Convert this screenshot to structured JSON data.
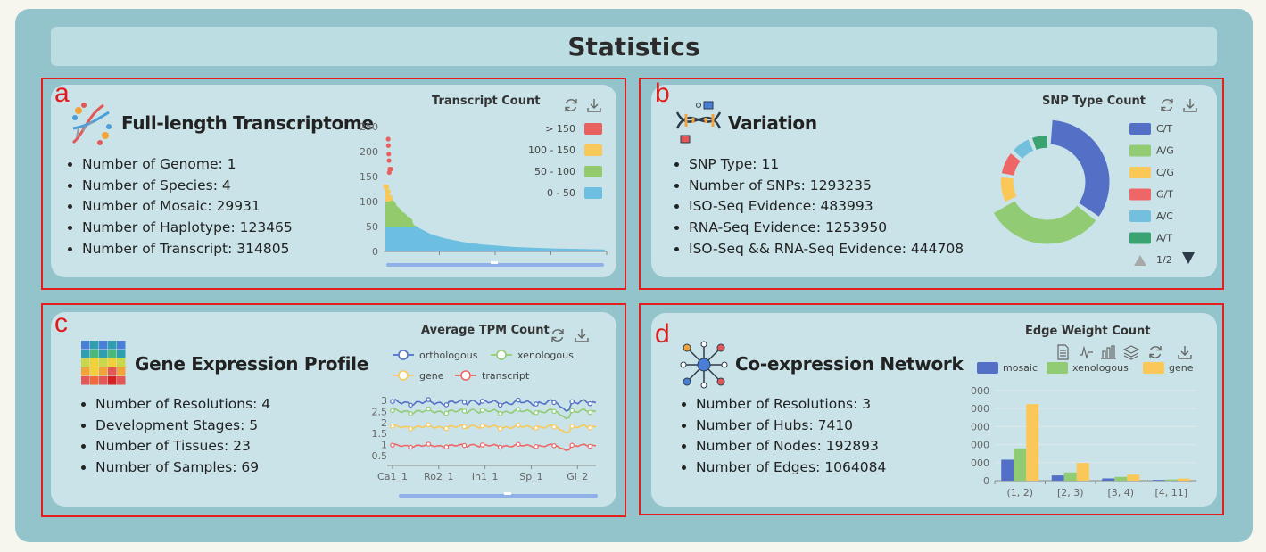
{
  "page": {
    "title": "Statistics"
  },
  "panels": {
    "a": {
      "letter": "a",
      "title": "Full-length Transcriptome",
      "stats": [
        "Number of Genome: 1",
        "Number of Species: 4",
        "Number of Mosaic: 29931",
        "Number of Haplotype: 123465",
        "Number of Transcript: 314805"
      ],
      "chart_title": "Transcript Count",
      "icons": [
        "refresh-icon",
        "download-icon"
      ]
    },
    "b": {
      "letter": "b",
      "title": "Variation",
      "stats": [
        "SNP Type: 11",
        "Number of SNPs: 1293235",
        "ISO-Seq Evidence: 483993",
        "RNA-Seq Evidence: 1253950",
        "ISO-Seq && RNA-Seq Evidence: 444708"
      ],
      "chart_title": "SNP Type Count",
      "pager": "1/2",
      "icons": [
        "refresh-icon",
        "download-icon"
      ]
    },
    "c": {
      "letter": "c",
      "title": "Gene Expression Profile",
      "stats": [
        "Number of Resolutions: 4",
        "Development Stages: 5",
        "Number of Tissues: 23",
        "Number of Samples: 69"
      ],
      "chart_title": "Average TPM Count",
      "icons": [
        "refresh-icon",
        "download-icon"
      ]
    },
    "d": {
      "letter": "d",
      "title": "Co-expression Network",
      "stats": [
        "Number of Resolutions: 3",
        "Number of Hubs: 7410",
        "Number of Nodes: 192893",
        "Number of Edges: 1064084"
      ],
      "chart_title": "Edge Weight Count",
      "icons": [
        "data-view-icon",
        "line-chart-icon",
        "bar-chart-icon",
        "stack-icon",
        "refresh-icon",
        "download-icon"
      ]
    }
  },
  "chart_data": [
    {
      "id": "transcript-count",
      "type": "scatter",
      "title": "Transcript Count",
      "y_ticks": [
        "0",
        "50",
        "100",
        "150",
        "200",
        "250"
      ],
      "ylim": [
        0,
        250
      ],
      "legend": [
        {
          "label": "> 150",
          "color": "#e8615f"
        },
        {
          "label": "100 - 150",
          "color": "#f9c85b"
        },
        {
          "label": "50 - 100",
          "color": "#93cb6c"
        },
        {
          "label": "0 - 50",
          "color": "#6cbfe0"
        }
      ],
      "outliers": [
        {
          "x": 0.2,
          "y": 225
        },
        {
          "x": 0.5,
          "y": 212
        },
        {
          "x": 1.0,
          "y": 195
        },
        {
          "x": 1.5,
          "y": 182
        },
        {
          "x": 2.5,
          "y": 165
        },
        {
          "x": 4.5,
          "y": 165
        },
        {
          "x": 1.8,
          "y": 158
        }
      ],
      "curve": [
        [
          0,
          130
        ],
        [
          2,
          128
        ],
        [
          4,
          120
        ],
        [
          6,
          112
        ],
        [
          8,
          104
        ],
        [
          10,
          97
        ],
        [
          15,
          88
        ],
        [
          20,
          80
        ],
        [
          30,
          68
        ],
        [
          40,
          57
        ],
        [
          55,
          45
        ],
        [
          70,
          35
        ],
        [
          90,
          27
        ],
        [
          120,
          19
        ],
        [
          150,
          14
        ],
        [
          200,
          9
        ],
        [
          260,
          6
        ],
        [
          340,
          4
        ]
      ],
      "x_count": 340
    },
    {
      "id": "snp-type-count",
      "type": "pie",
      "title": "SNP Type Count",
      "legend": [
        {
          "label": "C/T",
          "color": "#5470c6"
        },
        {
          "label": "A/G",
          "color": "#91cc75"
        },
        {
          "label": "C/G",
          "color": "#fac858"
        },
        {
          "label": "G/T",
          "color": "#ee6666"
        },
        {
          "label": "A/C",
          "color": "#73c0de"
        },
        {
          "label": "A/T",
          "color": "#3ba272"
        }
      ],
      "values": [
        310,
        290,
        90,
        80,
        70,
        60
      ]
    },
    {
      "id": "average-tpm-count",
      "type": "line",
      "title": "Average TPM Count",
      "series": [
        {
          "name": "orthologous",
          "color": "#5470c6",
          "base": 2.9
        },
        {
          "name": "xenologous",
          "color": "#91cc75",
          "base": 2.5
        },
        {
          "name": "gene",
          "color": "#fac858",
          "base": 1.8
        },
        {
          "name": "transcript",
          "color": "#ee6666",
          "base": 0.95
        }
      ],
      "y_ticks": [
        "0.5",
        "1",
        "1.5",
        "2",
        "2.5",
        "3"
      ],
      "ylim": [
        0.5,
        3.0
      ],
      "x_ticks": [
        "Ca1_1",
        "Ro2_1",
        "In1_1",
        "Sp_1",
        "Gl_2"
      ],
      "n": 69
    },
    {
      "id": "edge-weight-count",
      "type": "bar",
      "title": "Edge Weight Count",
      "categories": [
        "(1, 2)",
        "[2, 3)",
        "[3, 4)",
        "[4, 11]"
      ],
      "series": [
        {
          "name": "mosaic",
          "color": "#5470c6",
          "values": [
            140,
            35,
            15,
            5
          ]
        },
        {
          "name": "xenologous",
          "color": "#91cc75",
          "values": [
            215,
            55,
            25,
            8
          ]
        },
        {
          "name": "gene",
          "color": "#fac858",
          "values": [
            510,
            118,
            40,
            14
          ]
        }
      ],
      "y_ticks": [
        "0",
        "000",
        "000",
        "000",
        "000",
        "000"
      ],
      "ylim": [
        0,
        600
      ]
    }
  ]
}
